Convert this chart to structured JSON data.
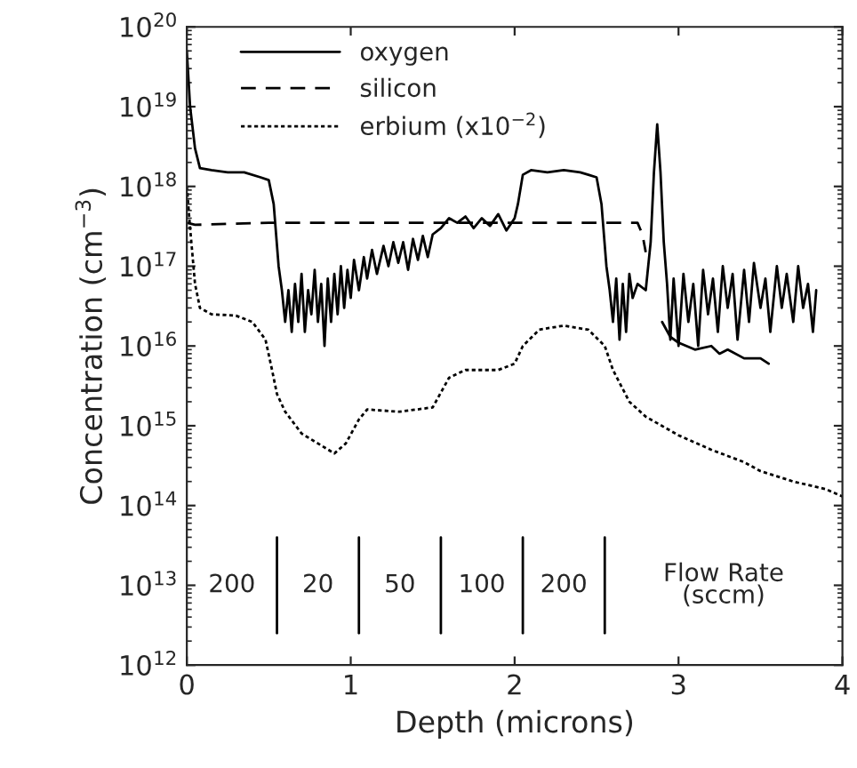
{
  "chart_data": {
    "type": "line",
    "xlabel": "Depth (microns)",
    "ylabel": "Concentration (cm$^{−3}$)",
    "log": "y",
    "xlim": [
      0,
      4
    ],
    "xticks": [
      0,
      1,
      2,
      3,
      4
    ],
    "ylim": [
      1000000000000.0,
      1e+20
    ],
    "yticks": [
      {
        "value": 1000000000000.0,
        "label": "10$^{12}$"
      },
      {
        "value": 10000000000000.0,
        "label": "10$^{13}$"
      },
      {
        "value": 100000000000000.0,
        "label": "10$^{14}$"
      },
      {
        "value": 1000000000000000.0,
        "label": "10$^{15}$"
      },
      {
        "value": 1e+16,
        "label": "10$^{16}$"
      },
      {
        "value": 1e+17,
        "label": "10$^{17}$"
      },
      {
        "value": 1e+18,
        "label": "10$^{18}$"
      },
      {
        "value": 1e+19,
        "label": "10$^{19}$"
      },
      {
        "value": 1e+20,
        "label": "10$^{20}$"
      }
    ],
    "legend": "top left",
    "grid": false,
    "series": [
      {
        "name": "oxygen",
        "color": "#000000",
        "line_style": "solid",
        "x": [
          0.0,
          0.02,
          0.05,
          0.08,
          0.15,
          0.25,
          0.35,
          0.45,
          0.5,
          0.53,
          0.56,
          0.58,
          0.6,
          0.62,
          0.64,
          0.66,
          0.68,
          0.7,
          0.72,
          0.74,
          0.76,
          0.78,
          0.8,
          0.82,
          0.84,
          0.86,
          0.88,
          0.9,
          0.92,
          0.94,
          0.96,
          0.98,
          1.0,
          1.02,
          1.05,
          1.08,
          1.1,
          1.13,
          1.16,
          1.2,
          1.23,
          1.26,
          1.29,
          1.32,
          1.35,
          1.38,
          1.41,
          1.44,
          1.47,
          1.5,
          1.55,
          1.6,
          1.65,
          1.7,
          1.75,
          1.8,
          1.85,
          1.9,
          1.95,
          2.0,
          2.02,
          2.05,
          2.1,
          2.2,
          2.3,
          2.4,
          2.45,
          2.5,
          2.53,
          2.56,
          2.58,
          2.6,
          2.62,
          2.64,
          2.66,
          2.68,
          2.7,
          2.72,
          2.75,
          2.8,
          2.83,
          2.85,
          2.87,
          2.89,
          2.91,
          2.93,
          2.95,
          2.97,
          3.0,
          3.03,
          3.06,
          3.09,
          3.12,
          3.15,
          3.18,
          3.21,
          3.24,
          3.27,
          3.3,
          3.33,
          3.36,
          3.4,
          3.43,
          3.46,
          3.5,
          3.53,
          3.56,
          3.6,
          3.63,
          3.66,
          3.7,
          3.73,
          3.76,
          3.79,
          3.82,
          3.84
        ],
        "values": [
          5e+19,
          1e+19,
          3e+18,
          1.7e+18,
          1.6e+18,
          1.5e+18,
          1.5e+18,
          1.3e+18,
          1.2e+18,
          6e+17,
          1e+17,
          5e+16,
          2e+16,
          5e+16,
          1.5e+16,
          6e+16,
          2e+16,
          8e+16,
          1.5e+16,
          5e+16,
          2.5e+16,
          9e+16,
          2e+16,
          6e+16,
          1e+16,
          7e+16,
          2e+16,
          8e+16,
          2.5e+16,
          1e+17,
          3e+16,
          9e+16,
          4e+16,
          1.2e+17,
          5e+16,
          1.3e+17,
          7e+16,
          1.6e+17,
          8e+16,
          1.8e+17,
          1e+17,
          2e+17,
          1.1e+17,
          2e+17,
          9e+16,
          2.2e+17,
          1.2e+17,
          2.4e+17,
          1.3e+17,
          2.5e+17,
          3e+17,
          4e+17,
          3.5e+17,
          4.2e+17,
          3e+17,
          4e+17,
          3.2e+17,
          4.5e+17,
          2.8e+17,
          4e+17,
          6e+17,
          1.4e+18,
          1.6e+18,
          1.5e+18,
          1.6e+18,
          1.5e+18,
          1.4e+18,
          1.3e+18,
          6e+17,
          1e+17,
          5e+16,
          2e+16,
          7e+16,
          1.2e+16,
          6e+16,
          1.5e+16,
          8e+16,
          4e+16,
          6e+16,
          5e+16,
          2e+17,
          1.5e+18,
          6e+18,
          1.5e+18,
          2e+17,
          6e+16,
          1.2e+16,
          7e+16,
          1e+16,
          8e+16,
          2e+16,
          6e+16,
          1e+16,
          9e+16,
          2.5e+16,
          7e+16,
          1.5e+16,
          1e+17,
          3e+16,
          8e+16,
          1.2e+16,
          9e+16,
          2e+16,
          1.1e+17,
          3e+16,
          7e+16,
          1.5e+16,
          1e+17,
          3e+16,
          8e+16,
          2e+16,
          1e+17,
          3e+16,
          6e+16,
          1.5e+16,
          5e+16
        ]
      },
      {
        "color": "#000000",
        "line_style": "solid",
        "x": [
          2.9,
          2.95,
          3.0,
          3.1,
          3.2,
          3.25,
          3.3,
          3.4,
          3.5,
          3.55
        ],
        "values": [
          2e+16,
          1.3e+16,
          1.1e+16,
          9000000000000000.0,
          1e+16,
          8000000000000000.0,
          9000000000000000.0,
          7000000000000000.0,
          7000000000000000.0,
          6000000000000000.0
        ]
      },
      {
        "name": "silicon",
        "color": "#000000",
        "line_style": "dashed",
        "x": [
          0,
          0.05,
          0.5,
          1.0,
          1.5,
          2.0,
          2.5,
          2.75,
          2.78,
          2.8
        ],
        "values": [
          3.5e+17,
          3.3e+17,
          3.5e+17,
          3.5e+17,
          3.5e+17,
          3.5e+17,
          3.5e+17,
          3.5e+17,
          2.5e+17,
          1.5e+17
        ]
      },
      {
        "name": "erbium (x10$^{−2}$)",
        "color": "#000000",
        "line_style": "dotted",
        "x": [
          0,
          0.02,
          0.05,
          0.08,
          0.15,
          0.3,
          0.4,
          0.48,
          0.52,
          0.55,
          0.6,
          0.7,
          0.8,
          0.9,
          0.97,
          1.05,
          1.1,
          1.3,
          1.5,
          1.6,
          1.7,
          1.9,
          2.0,
          2.05,
          2.15,
          2.3,
          2.45,
          2.55,
          2.6,
          2.7,
          2.8,
          3.0,
          3.2,
          3.4,
          3.5,
          3.7,
          3.9,
          4.0
        ],
        "values": [
          1e+18,
          3e+17,
          6e+16,
          3e+16,
          2.5e+16,
          2.4e+16,
          2e+16,
          1.2e+16,
          5000000000000000.0,
          2500000000000000.0,
          1500000000000000.0,
          800000000000000.0,
          600000000000000.0,
          450000000000000.0,
          600000000000000.0,
          1200000000000000.0,
          1600000000000000.0,
          1500000000000000.0,
          1700000000000000.0,
          4000000000000000.0,
          5000000000000000.0,
          5000000000000000.0,
          6000000000000000.0,
          1e+16,
          1.6e+16,
          1.8e+16,
          1.6e+16,
          1e+16,
          5000000000000000.0,
          2000000000000000.0,
          1300000000000000.0,
          760000000000000.0,
          500000000000000.0,
          350000000000000.0,
          270000000000000.0,
          200000000000000.0,
          160000000000000.0,
          130000000000000.0
        ]
      }
    ],
    "ref_lines": [
      {
        "axis": "x",
        "value": 0.55,
        "color": "#000000"
      },
      {
        "axis": "x",
        "value": 1.05,
        "color": "#000000"
      },
      {
        "axis": "x",
        "value": 1.55,
        "color": "#000000"
      },
      {
        "axis": "x",
        "value": 2.05,
        "color": "#000000"
      },
      {
        "axis": "x",
        "value": 2.55,
        "color": "#000000"
      }
    ],
    "annotations": [
      "200",
      "20",
      "50",
      "100",
      "200",
      "Flow Rate\n(sccm)"
    ]
  }
}
